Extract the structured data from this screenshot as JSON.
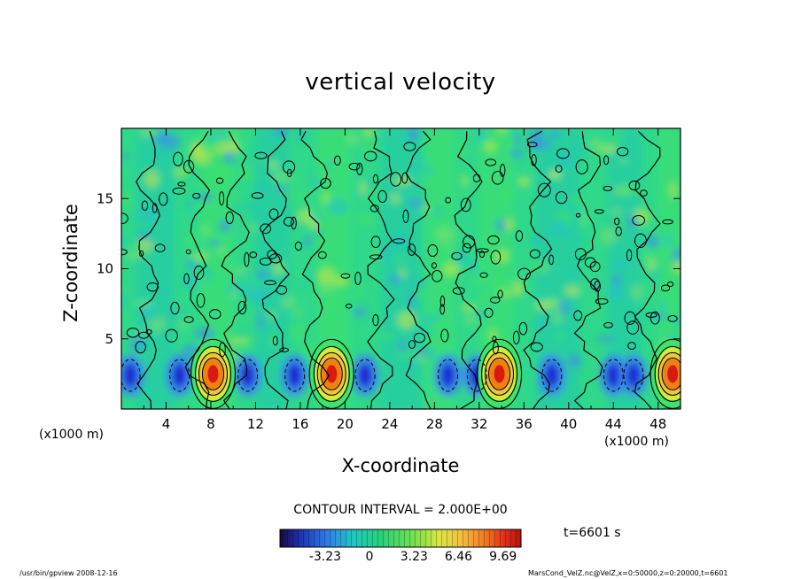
{
  "chart_data": {
    "type": "heatmap",
    "title": "vertical velocity",
    "xlabel": "X-coordinate",
    "ylabel": "Z-coordinate",
    "x_unit_left": "(x1000 m)",
    "x_unit_right": "(x1000 m)",
    "xlim": [
      0,
      50
    ],
    "ylim": [
      0,
      20
    ],
    "x_ticks": [
      4,
      8,
      12,
      16,
      20,
      24,
      28,
      32,
      36,
      40,
      44,
      48
    ],
    "y_ticks": [
      5,
      10,
      15
    ],
    "contour_interval": "CONTOUR INTERVAL = 2.000E+00",
    "colorbar": {
      "ticks": [
        "-3.23",
        "0",
        "3.23",
        "6.46",
        "9.69"
      ],
      "tick_values": [
        -3.23,
        0,
        3.23,
        6.46,
        9.69
      ],
      "range": [
        -6.5,
        11.0
      ]
    },
    "time_label": "t=6601 s",
    "updraft_cores_x": [
      8.2,
      18.8,
      33.8,
      49.3
    ],
    "colors": {
      "negative_deep": "#1b1fd0",
      "negative": "#3a8cf0",
      "neutral": "#22c7b0",
      "positive_low": "#3fe26a",
      "positive_mid": "#d8e83a",
      "positive_high": "#f07f10",
      "positive_max": "#d81b12"
    }
  },
  "footer": {
    "left": "/usr/bin/gpview   2008-12-16",
    "right": "MarsCond_VelZ.nc@VelZ,x=0:50000,z=0:20000,t=6601"
  }
}
